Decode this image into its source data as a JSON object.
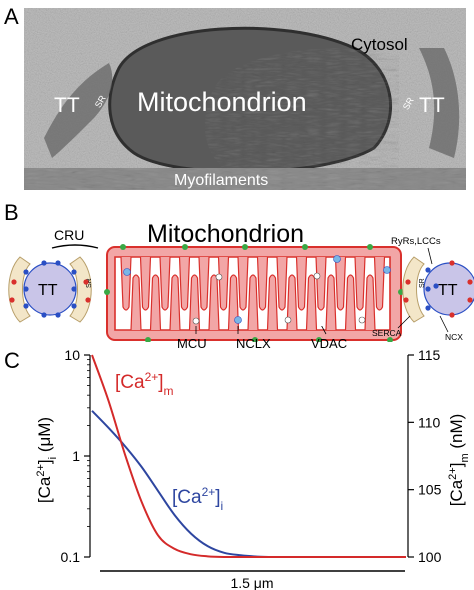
{
  "panels": {
    "a": {
      "letter": "A",
      "labels": {
        "cytosol": "Cytosol",
        "tt_left": "TT",
        "tt_right": "TT",
        "sr_left": "SR",
        "sr_right": "SR",
        "mitochondrion": "Mitochondrion",
        "myofilaments": "Myofilaments"
      }
    },
    "b": {
      "letter": "B",
      "labels": {
        "title": "Mitochondrion",
        "cru": "CRU",
        "tt_left": "TT",
        "tt_right": "TT",
        "sr_left": "SR",
        "sr_right": "SR",
        "ryrs_lccs": "RyRs,LCCs",
        "serca": "SERCA",
        "ncx": "NCX",
        "mcu": "MCU",
        "nclx": "NCLX",
        "vdac": "VDAC"
      },
      "colors": {
        "membrane_fill": "#f2a6a6",
        "membrane_stroke": "#d9302c",
        "tt_fill": "#c9c5e8",
        "sr_fill": "#f3e6c8",
        "ryr_blue": "#2a4fc4",
        "channel_red": "#d9302c",
        "vdac_green": "#39a845",
        "mcu_fill": "#ffffff",
        "nclx_blue": "#7ab6e6"
      }
    },
    "c": {
      "letter": "C",
      "y_left_label": "[Ca2+]i (μM)",
      "y_right_label": "[Ca2+]m (nM)",
      "x_scalebar_label": "1.5 μm",
      "series_label_m": "[Ca2+]m",
      "series_label_i": "[Ca2+]i",
      "left_ticks": [
        "10",
        "1",
        "0.1"
      ],
      "right_ticks": [
        "115",
        "110",
        "105",
        "100"
      ]
    }
  },
  "chart_data": {
    "type": "line",
    "title": "",
    "xlabel": "1.5 μm",
    "ylabel_left": "[Ca2+]i (μM)",
    "ylabel_right": "[Ca2+]m (nM)",
    "y_left_scale": "log",
    "y_left_lim": [
      0.1,
      10
    ],
    "y_right_lim": [
      100,
      115
    ],
    "x": [
      0,
      0.1,
      0.2,
      0.3,
      0.4,
      0.5,
      0.6,
      0.7,
      0.8,
      0.9,
      1.0,
      1.1,
      1.2,
      1.3,
      1.4,
      1.5,
      1.6,
      1.7,
      1.8,
      1.9
    ],
    "series": [
      {
        "name": "[Ca2+]i",
        "axis": "left",
        "color": "#2e46a0",
        "values": [
          2.8,
          1.9,
          1.25,
          0.78,
          0.45,
          0.26,
          0.17,
          0.128,
          0.11,
          0.104,
          0.101,
          0.1,
          0.1,
          0.1,
          0.1,
          0.1,
          0.1,
          0.1,
          0.1,
          0.1
        ]
      },
      {
        "name": "[Ca2+]m",
        "axis": "right",
        "color": "#d42a2a",
        "values": [
          115,
          111.6,
          107.6,
          104.1,
          101.6,
          100.6,
          100.2,
          100.05,
          100,
          100,
          100,
          100,
          100,
          100,
          100,
          100,
          100,
          100,
          100,
          100
        ]
      }
    ],
    "legend": "inline"
  }
}
